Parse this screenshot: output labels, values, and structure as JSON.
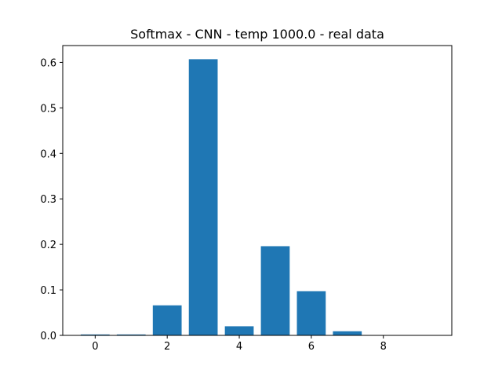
{
  "chart_data": {
    "type": "bar",
    "title": "Softmax - CNN - temp 1000.0 - real data",
    "xlabel": "",
    "ylabel": "",
    "x": [
      0,
      1,
      2,
      3,
      4,
      5,
      6,
      7,
      8,
      9
    ],
    "values": [
      0.002,
      0.002,
      0.066,
      0.607,
      0.02,
      0.196,
      0.097,
      0.009,
      0.0005,
      0.0003
    ],
    "xlim": [
      -0.9,
      9.9
    ],
    "ylim": [
      0,
      0.637
    ],
    "xticks": [
      0,
      2,
      4,
      6,
      8
    ],
    "yticks": [
      0.0,
      0.1,
      0.2,
      0.3,
      0.4,
      0.5,
      0.6
    ],
    "xtick_labels": [
      "0",
      "2",
      "4",
      "6",
      "8"
    ],
    "ytick_labels": [
      "0.0",
      "0.1",
      "0.2",
      "0.3",
      "0.4",
      "0.5",
      "0.6"
    ],
    "bar_width": 0.8,
    "bar_color": "#1f77b4",
    "grid": false,
    "legend": "none"
  }
}
